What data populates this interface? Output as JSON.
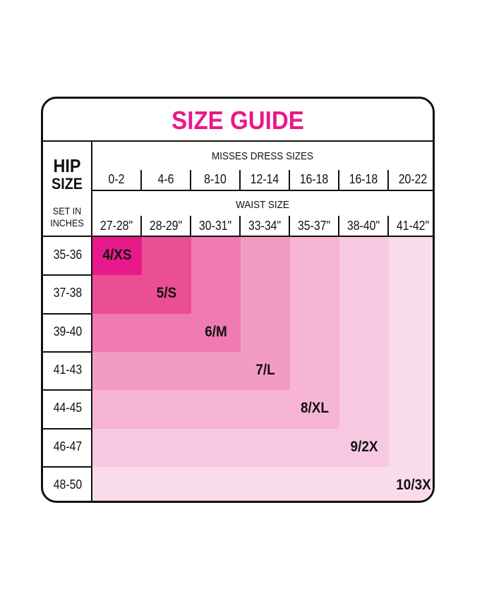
{
  "title": "SIZE GUIDE",
  "left_header": {
    "line1": "HIP",
    "line2": "SIZE",
    "sub1": "SET IN",
    "sub2": "INCHES"
  },
  "misses_label": "MISSES DRESS SIZES",
  "dress_sizes": [
    "0-2",
    "4-6",
    "8-10",
    "12-14",
    "16-18",
    "16-18",
    "20-22"
  ],
  "waist_label": "WAIST SIZE",
  "waist_sizes": [
    "27-28\"",
    "28-29\"",
    "30-31\"",
    "33-34\"",
    "35-37\"",
    "38-40\"",
    "41-42\""
  ],
  "hip_sizes": [
    "35-36",
    "37-38",
    "39-40",
    "41-43",
    "44-45",
    "46-47",
    "48-50"
  ],
  "sizes": [
    {
      "label": "4/XS",
      "color": "#e8198b"
    },
    {
      "label": "5/S",
      "color": "#ea4f95"
    },
    {
      "label": "6/M",
      "color": "#f07ab1"
    },
    {
      "label": "7/L",
      "color": "#f39cc3"
    },
    {
      "label": "8/XL",
      "color": "#f7b5d5"
    },
    {
      "label": "9/2X",
      "color": "#f8c9e2"
    },
    {
      "label": "10/3X",
      "color": "#fadbeb"
    }
  ]
}
